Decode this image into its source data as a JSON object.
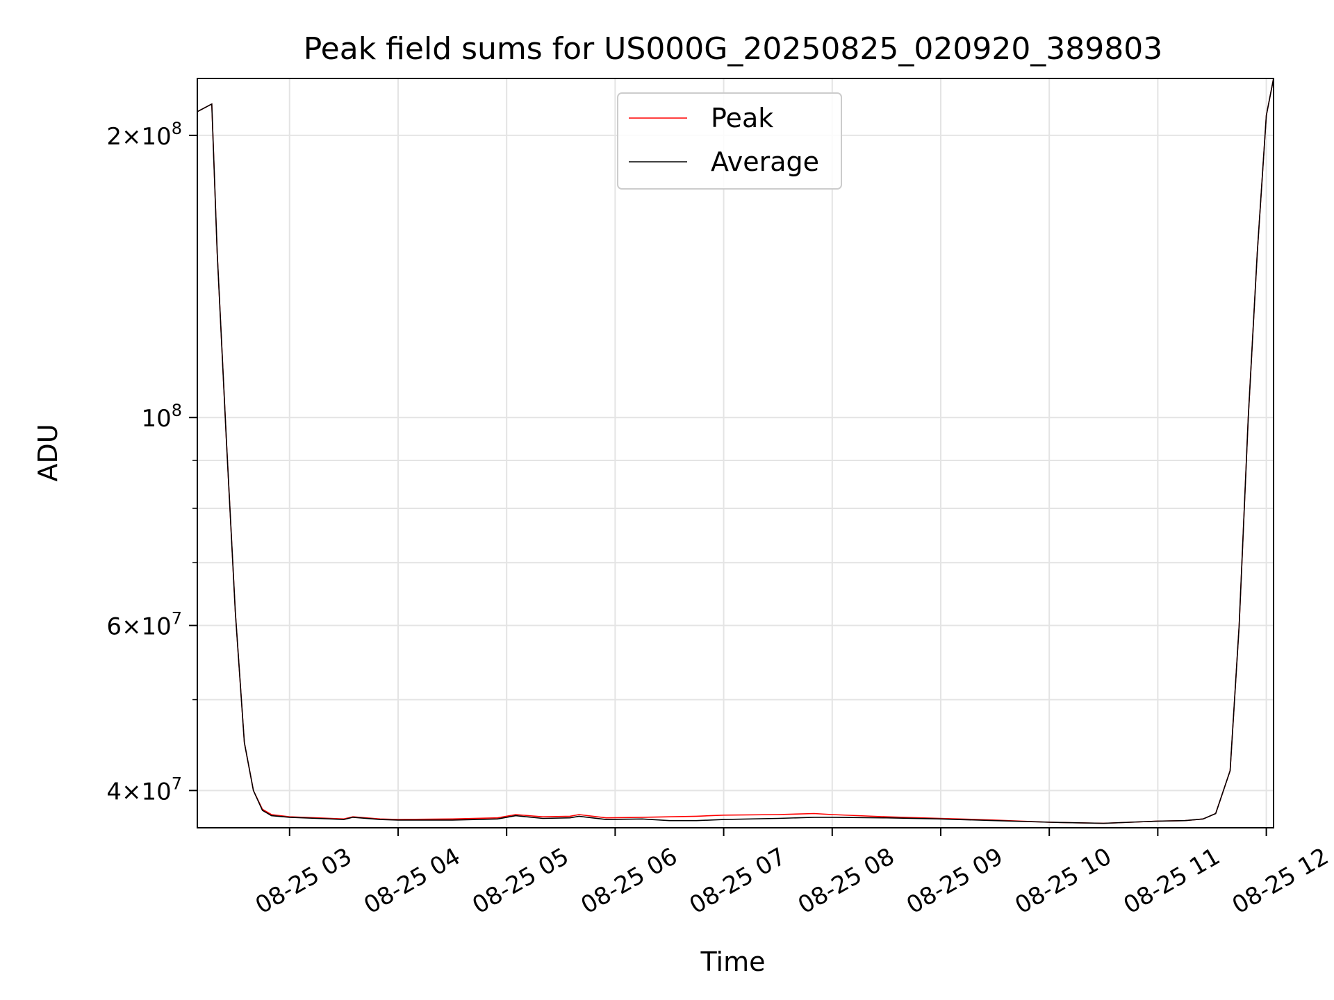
{
  "chart_data": {
    "type": "line",
    "title": "Peak field sums for US000G_20250825_020920_389803",
    "xlabel": "Time",
    "ylabel": "ADU",
    "yscale": "log",
    "grid": true,
    "legend_position": "upper center",
    "xlim": [
      "2025-08-25 02:09",
      "2025-08-25 12:04"
    ],
    "ylim": [
      36500000,
      230000000
    ],
    "x_ticks": [
      {
        "value": "2025-08-25 03:00",
        "label": "08-25 03"
      },
      {
        "value": "2025-08-25 04:00",
        "label": "08-25 04"
      },
      {
        "value": "2025-08-25 05:00",
        "label": "08-25 05"
      },
      {
        "value": "2025-08-25 06:00",
        "label": "08-25 06"
      },
      {
        "value": "2025-08-25 07:00",
        "label": "08-25 07"
      },
      {
        "value": "2025-08-25 08:00",
        "label": "08-25 08"
      },
      {
        "value": "2025-08-25 09:00",
        "label": "08-25 09"
      },
      {
        "value": "2025-08-25 10:00",
        "label": "08-25 10"
      },
      {
        "value": "2025-08-25 11:00",
        "label": "08-25 11"
      },
      {
        "value": "2025-08-25 12:00",
        "label": "08-25 12"
      }
    ],
    "y_ticks": [
      {
        "value": 40000000,
        "mantissa": "4",
        "exp": "7"
      },
      {
        "value": 60000000,
        "mantissa": "6",
        "exp": "7"
      },
      {
        "value": 100000000,
        "mantissa": "",
        "exp": "8"
      },
      {
        "value": 200000000,
        "mantissa": "2",
        "exp": "8"
      }
    ],
    "y_minor_ticks": [
      50000000,
      70000000,
      80000000,
      90000000
    ],
    "series": [
      {
        "name": "Peak",
        "color": "#ff0000",
        "x": [
          "2025-08-25 02:09",
          "2025-08-25 02:17",
          "2025-08-25 02:20",
          "2025-08-25 02:25",
          "2025-08-25 02:30",
          "2025-08-25 02:35",
          "2025-08-25 02:40",
          "2025-08-25 02:45",
          "2025-08-25 02:50",
          "2025-08-25 03:00",
          "2025-08-25 03:15",
          "2025-08-25 03:30",
          "2025-08-25 03:35",
          "2025-08-25 03:50",
          "2025-08-25 04:00",
          "2025-08-25 04:30",
          "2025-08-25 04:55",
          "2025-08-25 05:05",
          "2025-08-25 05:20",
          "2025-08-25 05:35",
          "2025-08-25 05:40",
          "2025-08-25 05:55",
          "2025-08-25 06:15",
          "2025-08-25 06:30",
          "2025-08-25 06:45",
          "2025-08-25 07:00",
          "2025-08-25 07:30",
          "2025-08-25 07:50",
          "2025-08-25 08:00",
          "2025-08-25 08:30",
          "2025-08-25 09:00",
          "2025-08-25 09:30",
          "2025-08-25 10:00",
          "2025-08-25 10:30",
          "2025-08-25 10:45",
          "2025-08-25 11:00",
          "2025-08-25 11:15",
          "2025-08-25 11:25",
          "2025-08-25 11:32",
          "2025-08-25 11:40",
          "2025-08-25 11:45",
          "2025-08-25 11:50",
          "2025-08-25 11:55",
          "2025-08-25 12:00",
          "2025-08-25 12:04"
        ],
        "y": [
          212000000,
          216000000,
          150000000,
          95000000,
          62000000,
          45000000,
          40000000,
          38200000,
          37700000,
          37500000,
          37400000,
          37300000,
          37500000,
          37300000,
          37250000,
          37300000,
          37400000,
          37700000,
          37500000,
          37550000,
          37700000,
          37400000,
          37450000,
          37500000,
          37550000,
          37650000,
          37700000,
          37800000,
          37700000,
          37500000,
          37350000,
          37200000,
          37000000,
          36900000,
          37000000,
          37100000,
          37150000,
          37300000,
          37800000,
          42000000,
          60000000,
          100000000,
          150000000,
          210000000,
          230000000
        ]
      },
      {
        "name": "Average",
        "color": "#000000",
        "x": [
          "2025-08-25 02:09",
          "2025-08-25 02:17",
          "2025-08-25 02:20",
          "2025-08-25 02:25",
          "2025-08-25 02:30",
          "2025-08-25 02:35",
          "2025-08-25 02:40",
          "2025-08-25 02:45",
          "2025-08-25 02:50",
          "2025-08-25 03:00",
          "2025-08-25 03:15",
          "2025-08-25 03:30",
          "2025-08-25 03:35",
          "2025-08-25 03:50",
          "2025-08-25 04:00",
          "2025-08-25 04:30",
          "2025-08-25 04:55",
          "2025-08-25 05:05",
          "2025-08-25 05:20",
          "2025-08-25 05:35",
          "2025-08-25 05:40",
          "2025-08-25 05:55",
          "2025-08-25 06:15",
          "2025-08-25 06:30",
          "2025-08-25 06:45",
          "2025-08-25 07:00",
          "2025-08-25 07:30",
          "2025-08-25 07:50",
          "2025-08-25 08:00",
          "2025-08-25 08:30",
          "2025-08-25 09:00",
          "2025-08-25 09:30",
          "2025-08-25 10:00",
          "2025-08-25 10:30",
          "2025-08-25 10:45",
          "2025-08-25 11:00",
          "2025-08-25 11:15",
          "2025-08-25 11:25",
          "2025-08-25 11:32",
          "2025-08-25 11:40",
          "2025-08-25 11:45",
          "2025-08-25 11:50",
          "2025-08-25 11:55",
          "2025-08-25 12:00",
          "2025-08-25 12:04"
        ],
        "y": [
          212000000,
          216000000,
          150000000,
          95000000,
          62000000,
          45000000,
          40000000,
          38100000,
          37600000,
          37450000,
          37350000,
          37250000,
          37450000,
          37250000,
          37200000,
          37200000,
          37300000,
          37600000,
          37350000,
          37400000,
          37550000,
          37250000,
          37300000,
          37150000,
          37150000,
          37250000,
          37350000,
          37450000,
          37450000,
          37400000,
          37300000,
          37150000,
          37000000,
          36900000,
          37000000,
          37100000,
          37150000,
          37300000,
          37800000,
          42000000,
          60000000,
          100000000,
          150000000,
          210000000,
          230000000
        ]
      }
    ]
  }
}
